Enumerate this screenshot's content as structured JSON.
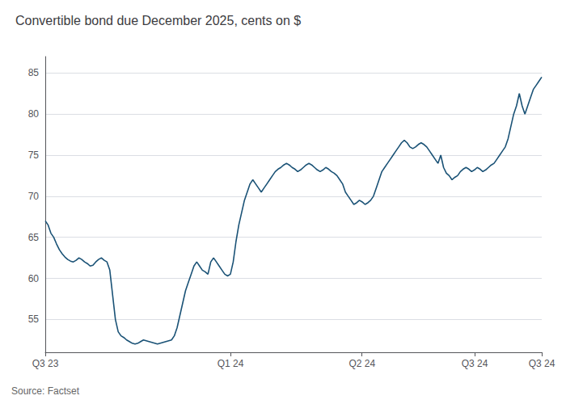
{
  "chart_data": {
    "type": "line",
    "title": "Convertible bond due December 2025, cents on $",
    "source": "Source: Factset",
    "color": "#1a5276",
    "grid": true,
    "x": [
      0,
      1,
      2,
      3,
      4,
      5,
      6,
      7,
      8,
      9,
      10,
      11,
      12,
      13,
      14,
      15,
      16,
      17,
      18,
      19,
      20,
      21,
      22,
      23,
      24,
      25,
      26,
      27,
      28,
      29,
      30,
      31,
      32,
      33,
      34,
      35,
      36,
      37,
      38,
      39,
      40,
      41,
      42,
      43,
      44,
      45,
      46,
      47,
      48,
      49,
      50,
      51,
      52,
      53,
      54,
      55,
      56,
      57,
      58,
      59,
      60,
      61,
      62,
      63,
      64,
      65,
      66,
      67,
      68,
      69,
      70,
      71,
      72,
      73,
      74,
      75,
      76,
      77,
      78,
      79,
      80,
      81,
      82,
      83,
      84,
      85,
      86,
      87,
      88,
      89,
      90,
      91,
      92,
      93,
      94,
      95,
      96,
      97,
      98,
      99,
      100,
      101,
      102,
      103,
      104,
      105,
      106,
      107,
      108,
      109,
      110,
      111,
      112,
      113,
      114,
      115,
      116,
      117,
      118,
      119,
      120,
      121,
      122,
      123,
      124,
      125,
      126,
      127,
      128,
      129,
      130,
      131,
      132,
      133,
      134,
      135,
      136,
      137,
      138,
      139,
      140,
      141,
      142,
      143,
      144,
      145,
      146,
      147,
      148,
      149,
      150,
      151,
      152,
      153,
      154,
      155,
      156,
      157,
      158,
      159,
      160,
      161,
      162,
      163,
      164,
      165,
      166,
      167,
      168,
      169,
      170,
      171,
      172,
      173,
      174,
      175,
      176,
      177
    ],
    "values": [
      67.0,
      66.5,
      65.5,
      65.0,
      64.2,
      63.5,
      63.0,
      62.6,
      62.3,
      62.1,
      62.0,
      62.2,
      62.5,
      62.3,
      62.0,
      61.8,
      61.5,
      61.6,
      62.0,
      62.3,
      62.5,
      62.2,
      62.0,
      61.0,
      58.0,
      55.0,
      53.5,
      53.0,
      52.8,
      52.5,
      52.3,
      52.1,
      52.0,
      52.1,
      52.3,
      52.5,
      52.4,
      52.3,
      52.2,
      52.1,
      52.0,
      52.1,
      52.2,
      52.3,
      52.4,
      52.5,
      53.0,
      54.0,
      55.5,
      57.0,
      58.5,
      59.5,
      60.5,
      61.5,
      62.0,
      61.5,
      61.0,
      60.8,
      60.5,
      62.0,
      62.5,
      62.0,
      61.5,
      61.0,
      60.5,
      60.3,
      60.5,
      62.0,
      64.5,
      66.5,
      68.0,
      69.5,
      70.5,
      71.5,
      72.0,
      71.5,
      71.0,
      70.5,
      71.0,
      71.5,
      72.0,
      72.5,
      73.0,
      73.3,
      73.5,
      73.8,
      74.0,
      73.8,
      73.5,
      73.3,
      73.0,
      73.2,
      73.5,
      73.8,
      74.0,
      73.8,
      73.5,
      73.2,
      73.0,
      73.2,
      73.5,
      73.3,
      73.0,
      72.8,
      72.5,
      72.0,
      71.5,
      70.5,
      70.0,
      69.5,
      69.0,
      69.2,
      69.5,
      69.3,
      69.0,
      69.2,
      69.5,
      70.0,
      71.0,
      72.0,
      73.0,
      73.5,
      74.0,
      74.5,
      75.0,
      75.5,
      76.0,
      76.5,
      76.8,
      76.5,
      76.0,
      75.8,
      76.0,
      76.3,
      76.5,
      76.3,
      76.0,
      75.5,
      75.0,
      74.5,
      74.0,
      75.0,
      73.5,
      72.8,
      72.5,
      72.0,
      72.3,
      72.5,
      73.0,
      73.3,
      73.5,
      73.3,
      73.0,
      73.2,
      73.5,
      73.3,
      73.0,
      73.2,
      73.5,
      73.8,
      74.0,
      74.5,
      75.0,
      75.5,
      76.0,
      77.0,
      78.5,
      80.0,
      81.0,
      82.5,
      81.0,
      80.0,
      81.0,
      82.0,
      83.0,
      83.5,
      84.0,
      84.5
    ],
    "xlim": [
      0,
      177
    ],
    "xticks": [
      {
        "value": 0,
        "label": "Q3 23"
      },
      {
        "value": 66.021,
        "label": "Q1 24"
      },
      {
        "value": 112.926,
        "label": "Q2 24"
      },
      {
        "value": 153.105,
        "label": "Q3 24"
      },
      {
        "value": 177,
        "label": "Q3 24"
      }
    ],
    "ylim": [
      51,
      87
    ],
    "yticks": [
      55,
      60,
      65,
      70,
      75,
      80,
      85
    ]
  }
}
